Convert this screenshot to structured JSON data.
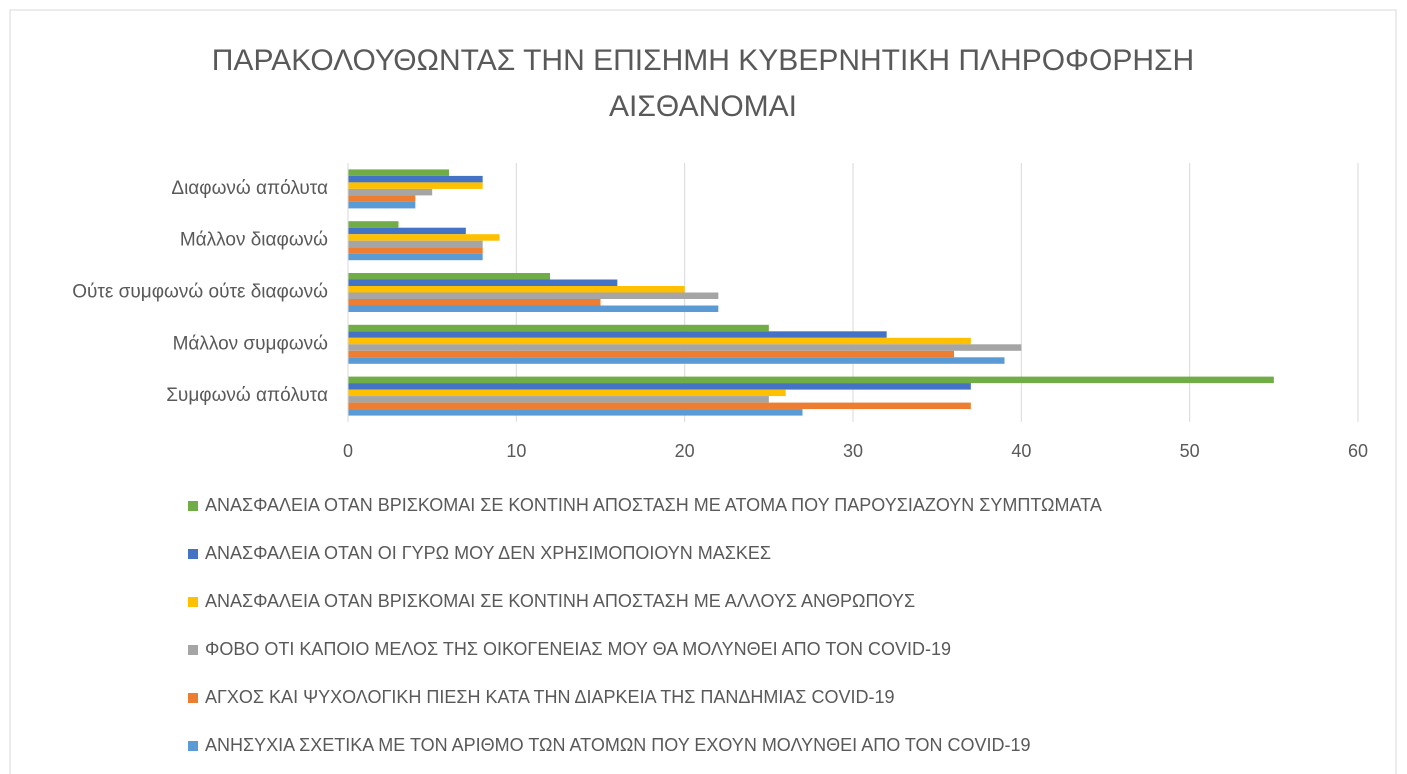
{
  "chart_data": {
    "type": "bar",
    "orientation": "horizontal",
    "title": [
      "ΠΑΡΑΚΟΛΟΥΘΩΝΤΑΣ ΤΗΝ ΕΠΙΣΗΜΗ ΚΥΒΕΡΝΗΤΙΚΗ ΠΛΗΡΟΦΟΡΗΣΗ",
      "ΑΙΣΘΑΝΟΜΑΙ"
    ],
    "categories": [
      "Διαφωνώ απόλυτα",
      "Μάλλον διαφωνώ",
      "Ούτε συμφωνώ ούτε διαφωνώ",
      "Μάλλον συμφωνώ",
      "Συμφωνώ απόλυτα"
    ],
    "series": [
      {
        "name": "ΑΝΑΣΦΑΛΕΙΑ ΟΤΑΝ ΒΡΙΣΚΟΜΑΙ ΣΕ ΚΟΝΤΙΝΗ ΑΠΟΣΤΑΣΗ ΜΕ ΑΤΟΜΑ ΠΟΥ ΠΑΡΟΥΣΙΑΖΟΥΝ ΣΥΜΠΤΩΜΑΤΑ",
        "color": "#70ad47",
        "values": [
          6,
          3,
          12,
          25,
          55
        ]
      },
      {
        "name": "ΑΝΑΣΦΑΛΕΙΑ ΟΤΑΝ ΟΙ ΓΥΡΩ ΜΟΥ ΔΕΝ ΧΡΗΣΙΜΟΠΟΙΟΥΝ ΜΑΣΚΕΣ",
        "color": "#4472c4",
        "values": [
          8,
          7,
          16,
          32,
          37
        ]
      },
      {
        "name": "ΑΝΑΣΦΑΛΕΙΑ ΟΤΑΝ ΒΡΙΣΚΟΜΑΙ ΣΕ ΚΟΝΤΙΝΗ ΑΠΟΣΤΑΣΗ ΜΕ ΑΛΛΟΥΣ ΑΝΘΡΩΠΟΥΣ",
        "color": "#ffc000",
        "values": [
          8,
          9,
          20,
          37,
          26
        ]
      },
      {
        "name": "ΦΟΒΟ ΟΤΙ ΚΑΠΟΙΟ ΜΕΛΟΣ ΤΗΣ ΟΙΚΟΓΕΝΕΙΑΣ ΜΟΥ ΘΑ ΜΟΛΥΝΘΕΙ ΑΠΟ ΤΟΝ COVID-19",
        "color": "#a5a5a5",
        "values": [
          5,
          8,
          22,
          40,
          25
        ]
      },
      {
        "name": "ΑΓΧΟΣ ΚΑΙ ΨΥΧΟΛΟΓΙΚΗ ΠΙΕΣΗ ΚΑΤΑ ΤΗΝ ΔΙΑΡΚΕΙΑ ΤΗΣ ΠΑΝΔΗΜΙΑΣ COVID-19",
        "color": "#ed7d31",
        "values": [
          4,
          8,
          15,
          36,
          37
        ]
      },
      {
        "name": "ΑΝΗΣΥΧΙΑ ΣΧΕΤΙΚΑ ΜΕ ΤΟΝ ΑΡΙΘΜΟ ΤΩΝ ΑΤΟΜΩΝ ΠΟΥ ΕΧΟΥΝ ΜΟΛΥΝΘΕΙ ΑΠΟ ΤΟΝ COVID-19",
        "color": "#5b9bd5",
        "values": [
          4,
          8,
          22,
          39,
          27
        ]
      }
    ],
    "xlim": [
      0,
      60
    ],
    "xticks": [
      0,
      10,
      20,
      30,
      40,
      50,
      60
    ],
    "grid": true,
    "legend": "bottom"
  }
}
